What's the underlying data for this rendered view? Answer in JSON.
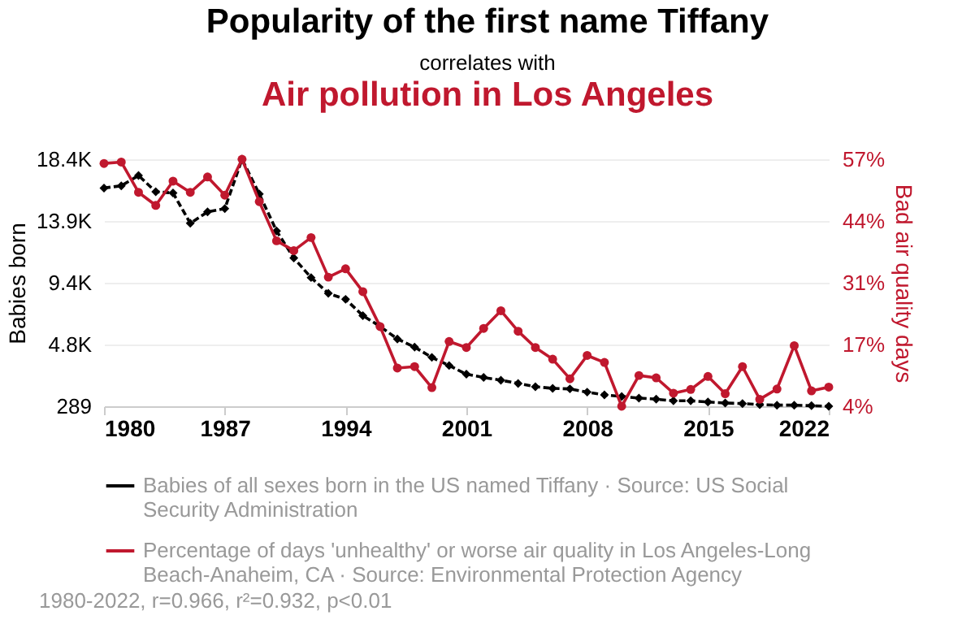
{
  "chart_data": {
    "type": "line",
    "title": "Popularity of the first name Tiffany",
    "subtitle": "correlates with",
    "annotations": [
      "Air pollution in Los Angeles",
      "1980-2022, r=0.966, r²=0.932, p<0.01"
    ],
    "ylabel": "Babies born",
    "y2label": "Bad air quality days",
    "x": [
      1980,
      1981,
      1982,
      1983,
      1984,
      1985,
      1986,
      1987,
      1988,
      1989,
      1990,
      1991,
      1992,
      1993,
      1994,
      1995,
      1996,
      1997,
      1998,
      1999,
      2000,
      2001,
      2002,
      2003,
      2004,
      2005,
      2006,
      2007,
      2008,
      2009,
      2010,
      2011,
      2012,
      2013,
      2014,
      2015,
      2016,
      2017,
      2018,
      2019,
      2020,
      2021,
      2022
    ],
    "xlim": [
      1980,
      2022
    ],
    "xticks": [
      1980,
      1987,
      1994,
      2001,
      2008,
      2015,
      2022
    ],
    "ylim": [
      289,
      18397
    ],
    "yticks": [
      {
        "value": 289,
        "label": "289"
      },
      {
        "value": 4820,
        "label": "4.8K"
      },
      {
        "value": 9350,
        "label": "9.4K"
      },
      {
        "value": 13870,
        "label": "13.9K"
      },
      {
        "value": 18397,
        "label": "18.4K"
      }
    ],
    "y2lim": [
      4,
      57
    ],
    "y2ticks": [
      {
        "value": 4,
        "label": "4%"
      },
      {
        "value": 17.25,
        "label": "17%"
      },
      {
        "value": 30.5,
        "label": "31%"
      },
      {
        "value": 43.75,
        "label": "44%"
      },
      {
        "value": 57,
        "label": "57%"
      }
    ],
    "grid": "y",
    "legend": "bottom",
    "series": [
      {
        "name": "Babies of all sexes born in the US named Tiffany · Source: US Social Security Administration",
        "color": "#000000",
        "marker": "diamond",
        "line_style": "dashed",
        "values": [
          16288,
          16448,
          17204,
          16010,
          15930,
          13702,
          14537,
          14776,
          18397,
          15851,
          13145,
          11154,
          9722,
          8567,
          8130,
          6936,
          6140,
          5224,
          4627,
          3871,
          3274,
          2637,
          2398,
          2199,
          1960,
          1722,
          1602,
          1563,
          1324,
          1125,
          1005,
          886,
          806,
          687,
          687,
          607,
          528,
          488,
          408,
          369,
          369,
          329,
          289
        ]
      },
      {
        "name": "Percentage of days 'unhealthy' or worse air quality in Los Angeles-Long Beach-Anaheim, CA · Source: Environmental Protection Agency",
        "color": "#c0182e",
        "axis": "y2",
        "marker": "circle",
        "line_style": "solid",
        "values": [
          56.1,
          56.4,
          49.9,
          47.1,
          52.3,
          49.9,
          53.2,
          49.3,
          57.0,
          47.9,
          39.5,
          37.4,
          40.2,
          31.7,
          33.5,
          28.6,
          21.1,
          12.2,
          12.5,
          8.0,
          17.9,
          16.6,
          20.7,
          24.5,
          20.1,
          16.6,
          14.1,
          9.9,
          14.9,
          13.4,
          4.0,
          10.6,
          10.1,
          6.8,
          7.6,
          10.4,
          6.7,
          12.5,
          5.5,
          7.7,
          17.0,
          7.3,
          8.1
        ]
      }
    ]
  }
}
